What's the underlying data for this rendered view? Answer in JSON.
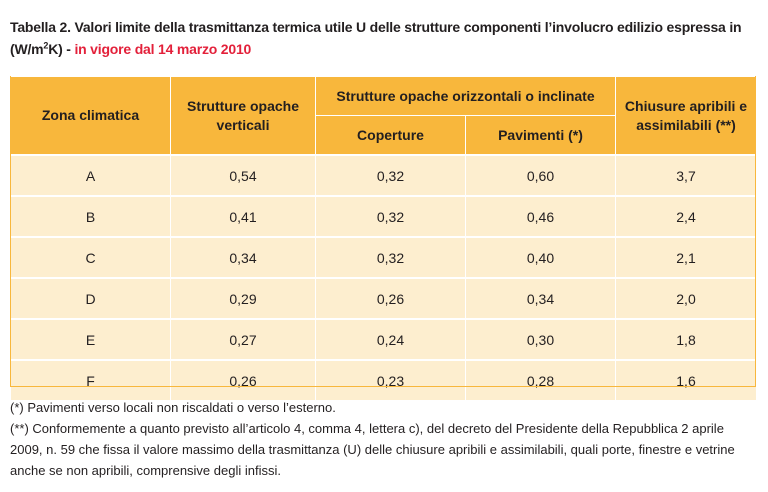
{
  "caption": {
    "title_main": "Tabella 2. Valori limite della trasmittanza termica utile U delle strutture componenti l’involucro edilizio espressa in (W/m",
    "title_sup": "2",
    "title_unit_end": "K)",
    "title_dash": " - ",
    "title_red": "in vigore dal 14 marzo 2010"
  },
  "table": {
    "headers": {
      "zona": "Zona climatica",
      "verticali": "Strutture opache verticali",
      "orizzontali": "Strutture opache orizzontali o inclinate",
      "coperture": "Coperture",
      "pavimenti": "Pavimenti (*)",
      "chiusure": "Chiusure apribili e assimilabili (**)"
    },
    "rows": [
      {
        "zona": "A",
        "verticali": "0,54",
        "coperture": "0,32",
        "pavimenti": "0,60",
        "chiusure": "3,7"
      },
      {
        "zona": "B",
        "verticali": "0,41",
        "coperture": "0,32",
        "pavimenti": "0,46",
        "chiusure": "2,4"
      },
      {
        "zona": "C",
        "verticali": "0,34",
        "coperture": "0,32",
        "pavimenti": "0,40",
        "chiusure": "2,1"
      },
      {
        "zona": "D",
        "verticali": "0,29",
        "coperture": "0,26",
        "pavimenti": "0,34",
        "chiusure": "2,0"
      },
      {
        "zona": "E",
        "verticali": "0,27",
        "coperture": "0,24",
        "pavimenti": "0,30",
        "chiusure": "1,8"
      },
      {
        "zona": "F",
        "verticali": "0,26",
        "coperture": "0,23",
        "pavimenti": "0,28",
        "chiusure": "1,6"
      }
    ]
  },
  "notes": {
    "note1": "(*) Pavimenti verso locali non riscaldati o verso l’esterno.",
    "note2": "(**) Conformemente a quanto previsto all’articolo 4, comma 4, lettera c), del decreto del Presidente della Repubblica 2 aprile 2009, n. 59 che fissa il valore massimo della trasmittanza (U) delle chiusure apribili e assimilabili, quali porte, finestre e vetrine anche se non apribili, comprensive degli infissi."
  },
  "colors": {
    "header_bg": "#f8b73c",
    "row_bg": "#fdeecf",
    "accent_red": "#e3203a",
    "text": "#231f20"
  }
}
